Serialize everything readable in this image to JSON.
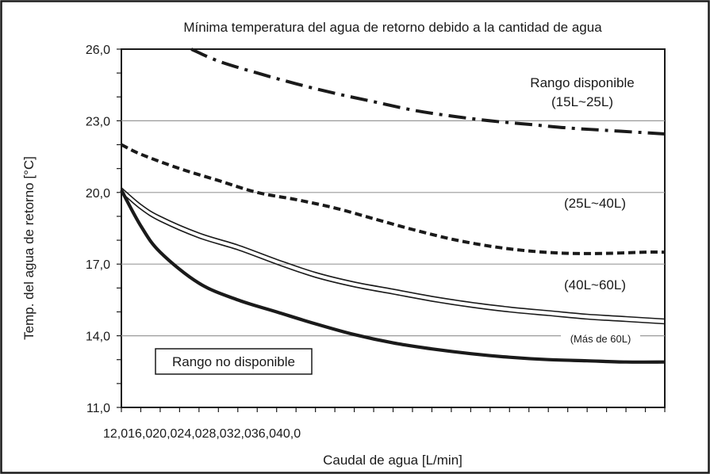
{
  "chart_data": {
    "type": "line",
    "title": "Mínima temperatura del agua de retorno debido a la cantidad de agua",
    "xlabel": "Caudal de agua [L/min]",
    "ylabel": "Temp. del agua de retorno [°C]",
    "xlim": [
      12.0,
      40.0
    ],
    "ylim": [
      11.0,
      26.0
    ],
    "yticks": [
      26.0,
      23.0,
      20.0,
      17.0,
      14.0,
      11.0
    ],
    "ytick_labels": [
      "26,0",
      "23,0",
      "20,0",
      "17,0",
      "14,0",
      "11,0"
    ],
    "xtick_labels_text": "12,016,020,024,028,032,036,040,0",
    "grid": "horizontal",
    "colors": {
      "line": "#1a1a1a",
      "grid": "#9a9a9a",
      "frame": "#1a1a1a"
    },
    "series": [
      {
        "name": "Rango disponible (15L~25L)",
        "style": "dashdot",
        "x": [
          15.6,
          17.0,
          19.0,
          21.0,
          23.0,
          25.0,
          27.0,
          29.0,
          31.0,
          33.0,
          35.0,
          37.0,
          39.0,
          40.0
        ],
        "y": [
          26.0,
          25.5,
          25.0,
          24.55,
          24.15,
          23.8,
          23.45,
          23.2,
          23.0,
          22.85,
          22.7,
          22.6,
          22.5,
          22.45
        ]
      },
      {
        "name": "(25L~40L)",
        "style": "dashed",
        "x": [
          12.0,
          13.0,
          15.0,
          17.0,
          19.0,
          21.0,
          23.0,
          25.0,
          27.0,
          29.0,
          31.0,
          33.0,
          35.0,
          37.0,
          39.0,
          40.0
        ],
        "y": [
          22.0,
          21.6,
          21.0,
          20.5,
          20.0,
          19.7,
          19.35,
          18.9,
          18.45,
          18.05,
          17.75,
          17.55,
          17.45,
          17.45,
          17.5,
          17.5
        ]
      },
      {
        "name": "(40L~60L) upper",
        "style": "solid",
        "x": [
          12.0,
          13.0,
          14.0,
          16.0,
          18.0,
          20.0,
          22.0,
          24.0,
          26.0,
          28.0,
          30.0,
          32.0,
          34.0,
          36.0,
          38.0,
          40.0
        ],
        "y": [
          20.2,
          19.5,
          19.0,
          18.3,
          17.8,
          17.2,
          16.65,
          16.25,
          15.95,
          15.65,
          15.4,
          15.2,
          15.05,
          14.9,
          14.8,
          14.7
        ]
      },
      {
        "name": "(40L~60L) lower",
        "style": "solid",
        "x": [
          12.0,
          13.0,
          14.0,
          16.0,
          18.0,
          20.0,
          22.0,
          24.0,
          26.0,
          28.0,
          30.0,
          32.0,
          34.0,
          36.0,
          38.0,
          40.0
        ],
        "y": [
          20.0,
          19.3,
          18.8,
          18.1,
          17.6,
          17.0,
          16.45,
          16.05,
          15.75,
          15.45,
          15.2,
          15.0,
          14.85,
          14.7,
          14.6,
          14.5
        ]
      },
      {
        "name": "(Más de 60L)",
        "style": "bold",
        "x": [
          12.0,
          13.0,
          14.0,
          16.0,
          18.0,
          20.0,
          22.0,
          24.0,
          26.0,
          28.0,
          30.0,
          32.0,
          34.0,
          36.0,
          38.0,
          40.0
        ],
        "y": [
          20.1,
          18.6,
          17.5,
          16.2,
          15.5,
          15.0,
          14.5,
          14.05,
          13.7,
          13.45,
          13.25,
          13.1,
          13.0,
          12.95,
          12.9,
          12.9
        ]
      }
    ],
    "annotations": {
      "range_15_25_line1": "Rango disponible",
      "range_15_25_line2": "(15L~25L)",
      "range_25_40": "(25L~40L)",
      "range_40_60": "(40L~60L)",
      "range_60_plus": "(Más de 60L)",
      "unavailable": "Rango no disponible"
    }
  }
}
